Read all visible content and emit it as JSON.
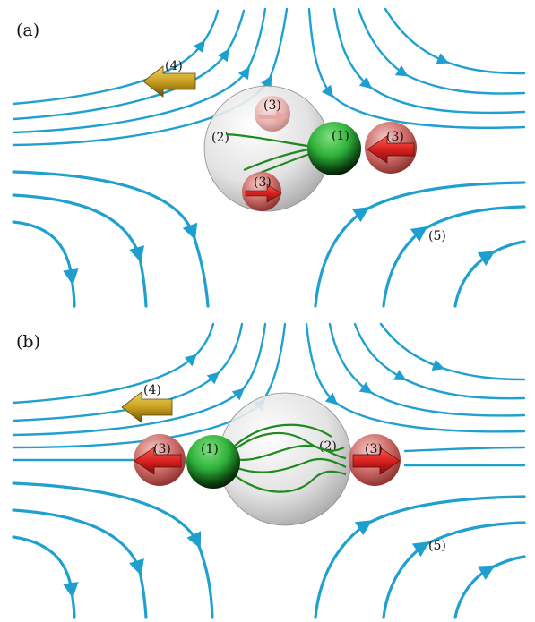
{
  "panels": [
    {
      "id": "a",
      "label": "(a)",
      "labels": {
        "cell_body": "(1)",
        "membrane": "(2)",
        "force_right": "(3)",
        "force_top": "(3)",
        "force_bottom": "(3)",
        "swim_direction": "(4)",
        "flow_field": "(5)"
      }
    },
    {
      "id": "b",
      "label": "(b)",
      "labels": {
        "cell_body": "(1)",
        "membrane": "(2)",
        "force_left": "(3)",
        "force_right": "(3)",
        "swim_direction": "(4)",
        "flow_field": "(5)"
      }
    }
  ],
  "colors": {
    "streamline": "#1fa0cf",
    "cell_body": "#2fb13a",
    "force_sphere": "#c23a3a",
    "force_arrow": "#d11d1d",
    "swim_arrow": "#c9a020",
    "membrane": "#d9d9d9",
    "filament": "#1f8a1f"
  },
  "icons": {
    "swim_arrow": "gold-arrow-left-icon",
    "force_arrow": "red-arrow-icon"
  }
}
